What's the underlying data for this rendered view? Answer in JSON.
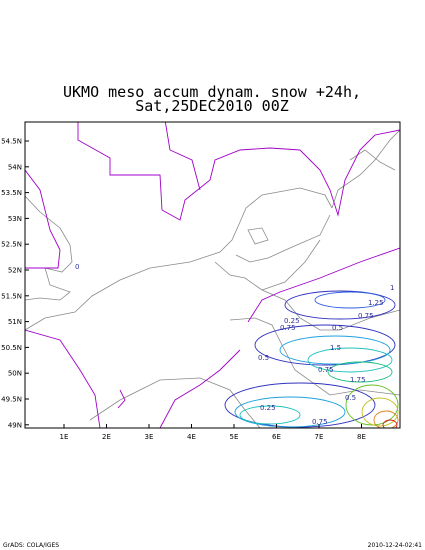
{
  "header": {
    "title_line1": "UKMO meso accum dynam. snow +24h,",
    "title_line2": "Sat,25DEC2010 00Z"
  },
  "map": {
    "lat_labels": [
      "54.5N",
      "54N",
      "53.5N",
      "53N",
      "52.5N",
      "52N",
      "51.5N",
      "51N",
      "50.5N",
      "50N",
      "49.5N",
      "49N"
    ],
    "lon_labels": [
      "1E",
      "2E",
      "3E",
      "4E",
      "5E",
      "6E",
      "7E",
      "8E"
    ],
    "contour_labels": [
      "0",
      "0.25",
      "0.75",
      "0.5",
      "1",
      "1.25",
      "0.75",
      "0.5",
      "1.5",
      "0.75",
      "1.75",
      "0.5",
      "0.25",
      "0.75"
    ]
  },
  "footer": {
    "left": "GrADS: COLA/IGES",
    "right": "2010-12-24-02:41"
  }
}
